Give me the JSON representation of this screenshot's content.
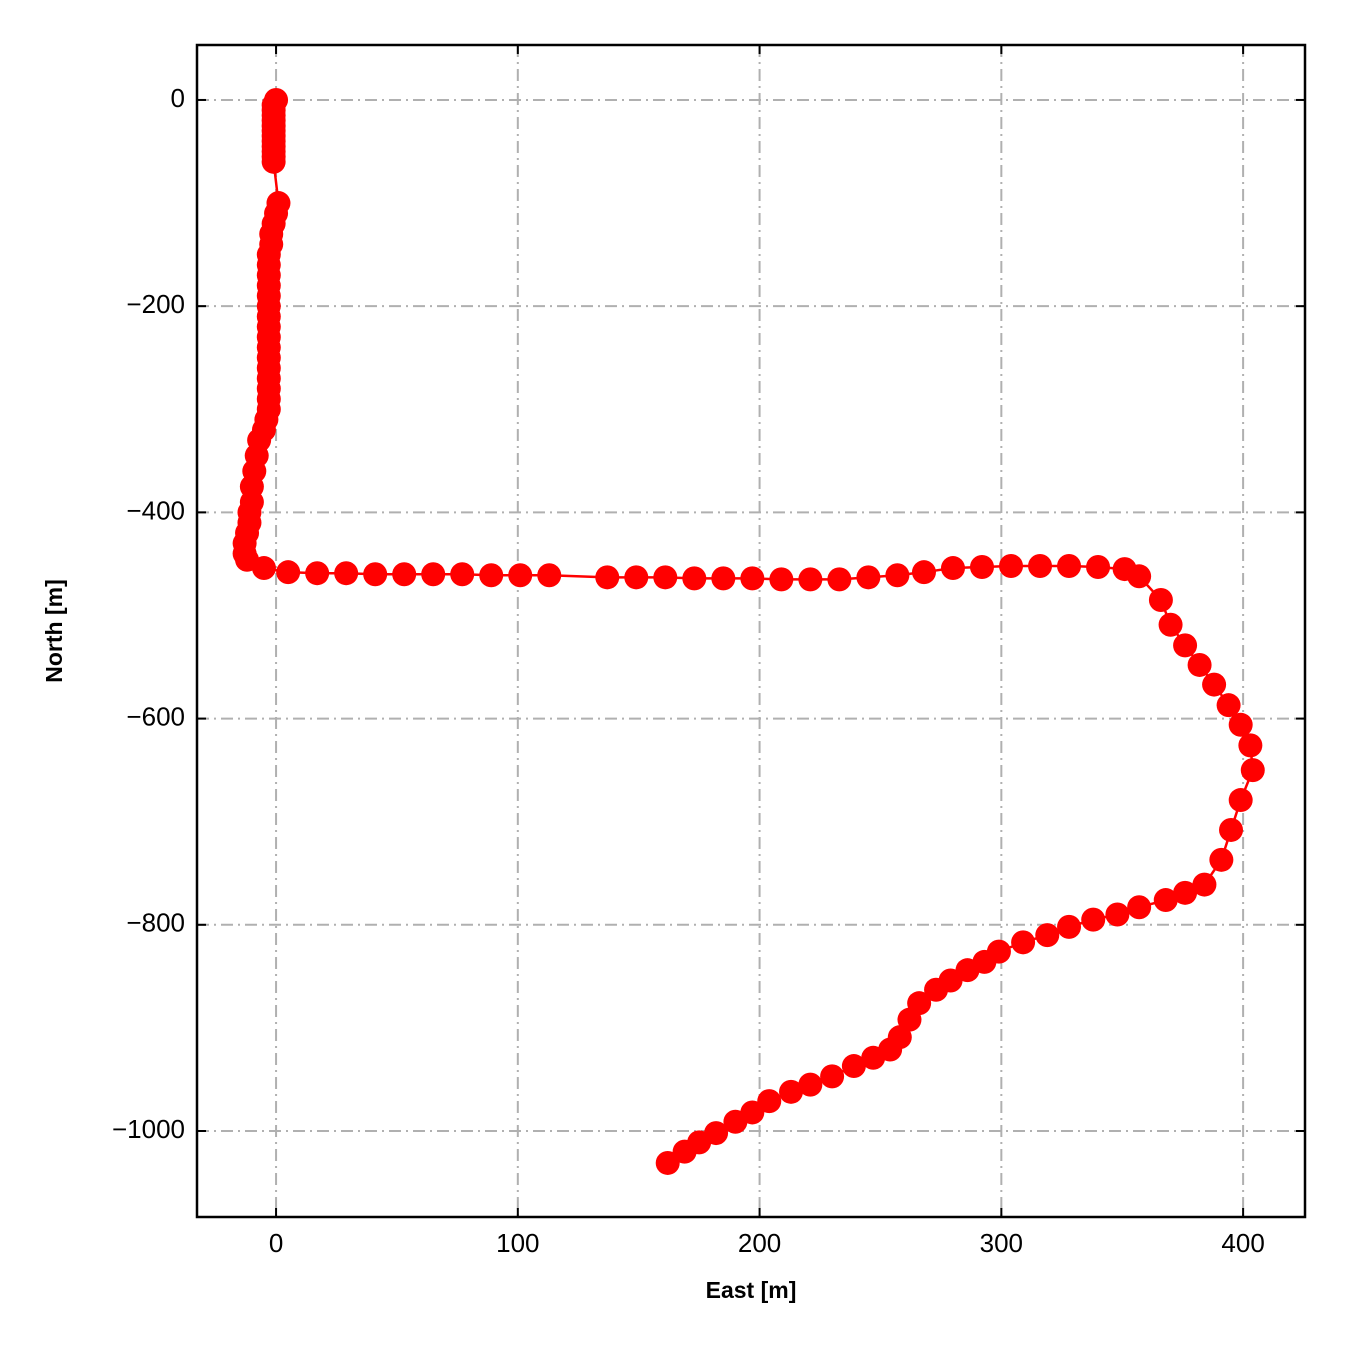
{
  "chart_data": {
    "type": "line",
    "xlabel": "East [m]",
    "ylabel": "North [m]",
    "color": "#ff0000",
    "grid": true,
    "xlim": [
      -32.7,
      425.6
    ],
    "ylim": [
      -1083.4,
      53.3
    ],
    "xticks": [
      0,
      100,
      200,
      300,
      400
    ],
    "yticks": [
      0,
      {
        "value": -200,
        "label": "−200"
      },
      {
        "value": -400,
        "label": "−400"
      },
      {
        "value": -600,
        "label": "−600"
      },
      {
        "value": -800,
        "label": "−800"
      },
      {
        "value": -1000,
        "label": "−1000"
      }
    ],
    "x": [
      0,
      -1,
      -1,
      -1,
      -1,
      -1,
      -1,
      -1,
      -1,
      -1,
      -1,
      -1,
      -1,
      1,
      0,
      -1,
      -2,
      -2,
      -3,
      -3,
      -3,
      -3,
      -3,
      -3,
      -3,
      -3,
      -3,
      -3,
      -3,
      -3,
      -3,
      -3,
      -3,
      -3,
      -4,
      -5,
      -7,
      -8,
      -9,
      -10,
      -10,
      -11,
      -11,
      -12,
      -13,
      -13,
      -12,
      -5,
      5,
      17,
      29,
      41,
      53,
      65,
      77,
      89,
      101,
      113,
      137,
      149,
      161,
      173,
      185,
      197,
      209,
      221,
      233,
      245,
      257,
      268,
      280,
      292,
      304,
      316,
      328,
      340,
      351,
      357,
      366,
      370,
      376,
      382,
      388,
      394,
      399,
      403,
      404,
      399,
      395,
      391,
      384,
      376,
      368,
      357,
      348,
      338,
      328,
      319,
      309,
      299,
      293,
      286,
      279,
      273,
      266,
      262,
      258,
      254,
      247,
      239,
      230,
      221,
      213,
      204,
      197,
      190,
      182,
      175,
      169,
      162
    ],
    "values": [
      0,
      -5,
      -10,
      -15,
      -20,
      -25,
      -30,
      -35,
      -40,
      -45,
      -50,
      -55,
      -60,
      -100,
      -110,
      -120,
      -130,
      -140,
      -150,
      -160,
      -170,
      -180,
      -190,
      -200,
      -210,
      -220,
      -230,
      -240,
      -250,
      -260,
      -270,
      -280,
      -290,
      -300,
      -310,
      -320,
      -330,
      -345,
      -360,
      -375,
      -390,
      -400,
      -410,
      -420,
      -430,
      -440,
      -446,
      -454,
      -458,
      -459,
      -459,
      -460,
      -460,
      -460,
      -460,
      -461,
      -461,
      -461,
      -463,
      -463,
      -463,
      -464,
      -464,
      -464,
      -465,
      -465,
      -465,
      -463,
      -461,
      -458,
      -454,
      -453,
      -452,
      -452,
      -452,
      -453,
      -455,
      -462,
      -485,
      -509,
      -529,
      -548,
      -567,
      -587,
      -606,
      -626,
      -650,
      -679,
      -708,
      -737,
      -761,
      -769,
      -776,
      -783,
      -790,
      -795,
      -802,
      -810,
      -817,
      -826,
      -836,
      -844,
      -854,
      -863,
      -876,
      -892,
      -909,
      -921,
      -929,
      -937,
      -947,
      -955,
      -962,
      -971,
      -982,
      -991,
      -1002,
      -1011,
      -1020,
      -1031
    ]
  }
}
